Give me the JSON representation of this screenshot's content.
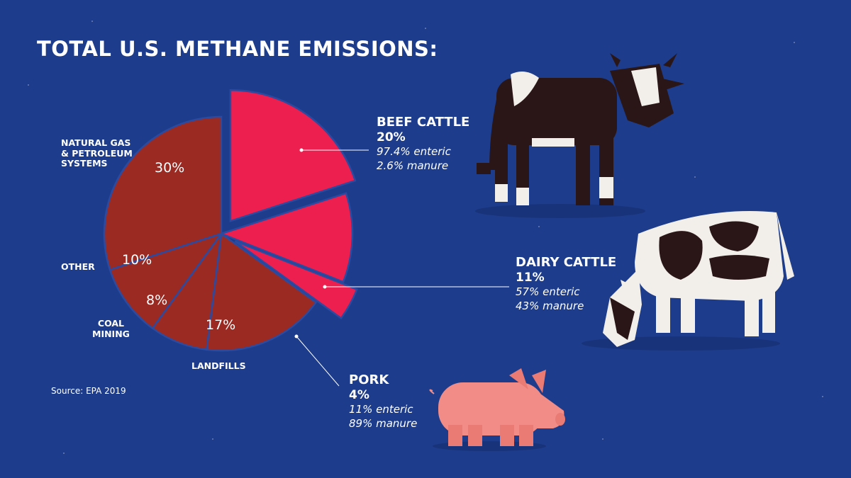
{
  "title": "TOTAL U.S. METHANE EMISSIONS:",
  "source": "Source: EPA 2019",
  "colors": {
    "background": "#1d3d8c",
    "non_agriculture": "#9b2a23",
    "agriculture": "#ec1f4f",
    "divider": "#2b4aa0"
  },
  "chart_data": {
    "type": "pie",
    "title": "TOTAL U.S. METHANE EMISSIONS:",
    "slices": [
      {
        "label": "NATURAL GAS & PETROLEUM SYSTEMS",
        "value": 30,
        "value_label": "30%",
        "group": "non_agriculture"
      },
      {
        "label": "BEEF CATTLE",
        "value": 20,
        "value_label": "20%",
        "group": "agriculture",
        "exploded": true,
        "breakdown": [
          "97.4% enteric",
          "2.6% manure"
        ]
      },
      {
        "label": "DAIRY CATTLE",
        "value": 11,
        "value_label": "11%",
        "group": "agriculture",
        "breakdown": [
          "57% enteric",
          "43% manure"
        ]
      },
      {
        "label": "PORK",
        "value": 4,
        "value_label": "4%",
        "group": "agriculture",
        "exploded": true,
        "breakdown": [
          "11% enteric",
          "89% manure"
        ]
      },
      {
        "label": "LANDFILLS",
        "value": 17,
        "value_label": "17%",
        "group": "non_agriculture"
      },
      {
        "label": "COAL MINING",
        "value": 8,
        "value_label": "8%",
        "group": "non_agriculture"
      },
      {
        "label": "OTHER",
        "value": 10,
        "value_label": "10%",
        "group": "non_agriculture"
      }
    ]
  },
  "labels": {
    "natural_gas": "NATURAL GAS\n& PETROLEUM\nSYSTEMS",
    "other": "OTHER",
    "coal": "COAL\nMINING",
    "landfills": "LANDFILLS"
  },
  "callouts": {
    "beef": {
      "name": "BEEF CATTLE",
      "value": "20%",
      "line1": "97.4% enteric",
      "line2": "2.6% manure"
    },
    "dairy": {
      "name": "DAIRY CATTLE",
      "value": "11%",
      "line1": "57% enteric",
      "line2": "43% manure"
    },
    "pork": {
      "name": "PORK",
      "value": "4%",
      "line1": "11% enteric",
      "line2": "89% manure"
    }
  },
  "illustrations": [
    "beef-cow",
    "dairy-cow",
    "pig"
  ]
}
